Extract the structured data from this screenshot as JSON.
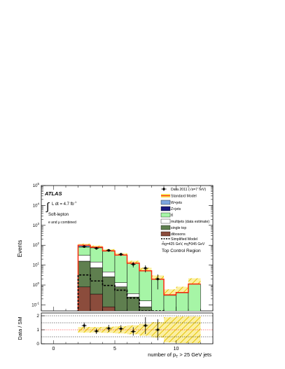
{
  "chart_data": [
    {
      "type": "bar",
      "title": "",
      "xlabel": "number of p_T > 25 GeV jets",
      "ylabel": "Events",
      "log_y": true,
      "xlim": [
        -1,
        13
      ],
      "ylim": [
        0.05,
        100000
      ],
      "y_tick_exponents": [
        -1,
        0,
        1,
        2,
        3,
        4,
        5
      ],
      "x_ticks": [
        0,
        5,
        10
      ],
      "bin_edges": [
        0,
        1,
        2,
        3,
        4,
        5,
        6,
        7,
        8,
        9,
        10,
        11,
        12
      ],
      "stack_order_bottom_to_top": [
        "dibosons",
        "single top",
        "multijets (data estimate)",
        "tt",
        "Z+jets",
        "W+jets"
      ],
      "stacks": {
        "dibosons": [
          0,
          0,
          0.8,
          0.35,
          0.08,
          0.01,
          0,
          0,
          0,
          0,
          0,
          0
        ],
        "single top": [
          0,
          0,
          15,
          7,
          2.5,
          0.8,
          0.25,
          0.08,
          0,
          0,
          0,
          0
        ],
        "multijets (data estimate)": [
          0,
          0,
          15,
          7,
          2,
          0.5,
          0.12,
          0.08,
          0,
          0,
          0,
          0
        ],
        "tt": [
          0,
          0,
          50,
          60,
          45,
          30,
          12,
          5,
          1.9,
          0.3,
          0.4,
          1.1
        ],
        "Z+jets": [
          0,
          0,
          2,
          1.5,
          0.7,
          0.25,
          0.08,
          0.03,
          0.02,
          0,
          0,
          0
        ],
        "W+jets": [
          0,
          0,
          18,
          4,
          1,
          0.3,
          0.1,
          0.03,
          0.02,
          0,
          0,
          0
        ]
      },
      "standard_model": [
        0,
        0,
        100,
        80,
        52,
        32,
        12.5,
        5.2,
        1.95,
        0.32,
        0.42,
        1.12
      ],
      "sm_band_relative": [
        0,
        0,
        0.2,
        0.2,
        0.22,
        0.26,
        0.32,
        0.42,
        0.55,
        0.9,
        0.95,
        0.95
      ],
      "simplified_model": [
        0,
        0,
        3.2,
        1.6,
        0.95,
        0.55,
        0.22,
        0.05,
        0.02,
        0,
        0,
        0
      ],
      "data": {
        "x": [
          2.5,
          3.5,
          4.5,
          5.5,
          6.5,
          7.5,
          8.5
        ],
        "y": [
          85,
          70,
          55,
          35,
          11,
          7,
          2
        ],
        "yerr": [
          9,
          8,
          7.5,
          6,
          3.3,
          2.7,
          1.4
        ]
      },
      "colors": {
        "dibosons": "#8b4c3c",
        "single top": "#5f7f4f",
        "multijets (data estimate)": "#ffffff",
        "tt": "#a6f5a6",
        "Z+jets": "#1a1a80",
        "W+jets": "#7ea6e0",
        "standard_model": "#ff2a0d",
        "band": "#f7e255"
      }
    },
    {
      "type": "scatter",
      "ylabel": "Data / SM",
      "ylim": [
        0,
        2.2
      ],
      "y_ticks": [
        0,
        1,
        2
      ],
      "reference_lines": [
        0.5,
        1,
        1.5,
        2
      ],
      "x": [
        2.5,
        3.5,
        4.5,
        5.5,
        6.5,
        7.5,
        8.5
      ],
      "y": [
        1.3,
        0.9,
        1.1,
        1.08,
        0.88,
        1.3,
        1.0
      ],
      "yerr": [
        0.22,
        0.2,
        0.25,
        0.25,
        0.3,
        0.6,
        0.75
      ]
    }
  ],
  "atlas": {
    "label": "ATLAS",
    "lumi_prefix": "L dt = 4.7 fb",
    "lumi_exp": "-1",
    "channel": "Soft-lepton",
    "combined": "e and μ combined"
  },
  "legend": {
    "data": "Data 2011 (√s=7 TeV)",
    "sm": "Standard Model",
    "wjets": "W+jets",
    "zjets": "Z+jets",
    "tt": "tt̄",
    "multijets": "multijets (data estimate)",
    "singletop": "single top",
    "dibosons": "dibosons",
    "simplified": "Simplified Model",
    "masses": "m̃g=425 GeV, mχ̃̃=345 GeV",
    "region": "Top Control Region"
  },
  "axes": {
    "ylabel": "Events",
    "ratio_ylabel": "Data / SM",
    "xlabel_pre": "number of p",
    "xlabel_sub": "T",
    "xlabel_post": " > 25 GeV jets",
    "xticks": [
      "0",
      "5",
      "10"
    ],
    "ratio_yticks": [
      "0",
      "1",
      "2"
    ]
  }
}
